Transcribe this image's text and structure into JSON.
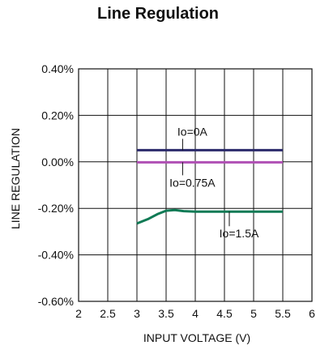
{
  "chart_data": {
    "type": "line",
    "title": "Line Regulation",
    "xlabel": "INPUT VOLTAGE (V)",
    "ylabel": "LINE REGULATION",
    "xlim": [
      2,
      6
    ],
    "ylim": [
      -0.6,
      0.4
    ],
    "x_ticks": [
      2,
      2.5,
      3,
      3.5,
      4,
      4.5,
      5,
      5.5,
      6
    ],
    "x_tick_labels": [
      "2",
      "2.5",
      "3",
      "3.5",
      "4",
      "4.5",
      "5",
      "5.5",
      "6"
    ],
    "y_ticks": [
      0.4,
      0.2,
      0.0,
      -0.2,
      -0.4,
      -0.6
    ],
    "y_tick_labels": [
      "0.40%",
      "0.20%",
      "0.00%",
      "-0.20%",
      "-0.40%",
      "-0.60%"
    ],
    "grid": true,
    "series": [
      {
        "name": "Io=0A",
        "color": "#2b2a6b",
        "x": [
          3.0,
          5.5
        ],
        "y": [
          0.05,
          0.05
        ]
      },
      {
        "name": "Io=0.75A",
        "color": "#b04fb5",
        "x": [
          3.0,
          5.5
        ],
        "y": [
          -0.002,
          -0.002
        ]
      },
      {
        "name": "Io=1.5A",
        "color": "#0f7a55",
        "x": [
          3.0,
          3.2,
          3.35,
          3.5,
          3.65,
          3.8,
          4.0,
          4.5,
          5.0,
          5.5
        ],
        "y": [
          -0.265,
          -0.245,
          -0.225,
          -0.21,
          -0.207,
          -0.212,
          -0.214,
          -0.214,
          -0.214,
          -0.214
        ]
      }
    ],
    "annotations": [
      {
        "text": "Io=0A",
        "series": 0,
        "x": 3.95
      },
      {
        "text": "Io=0.75A",
        "series": 1,
        "x": 3.95
      },
      {
        "text": "Io=1.5A",
        "series": 2,
        "x": 4.75
      }
    ]
  }
}
